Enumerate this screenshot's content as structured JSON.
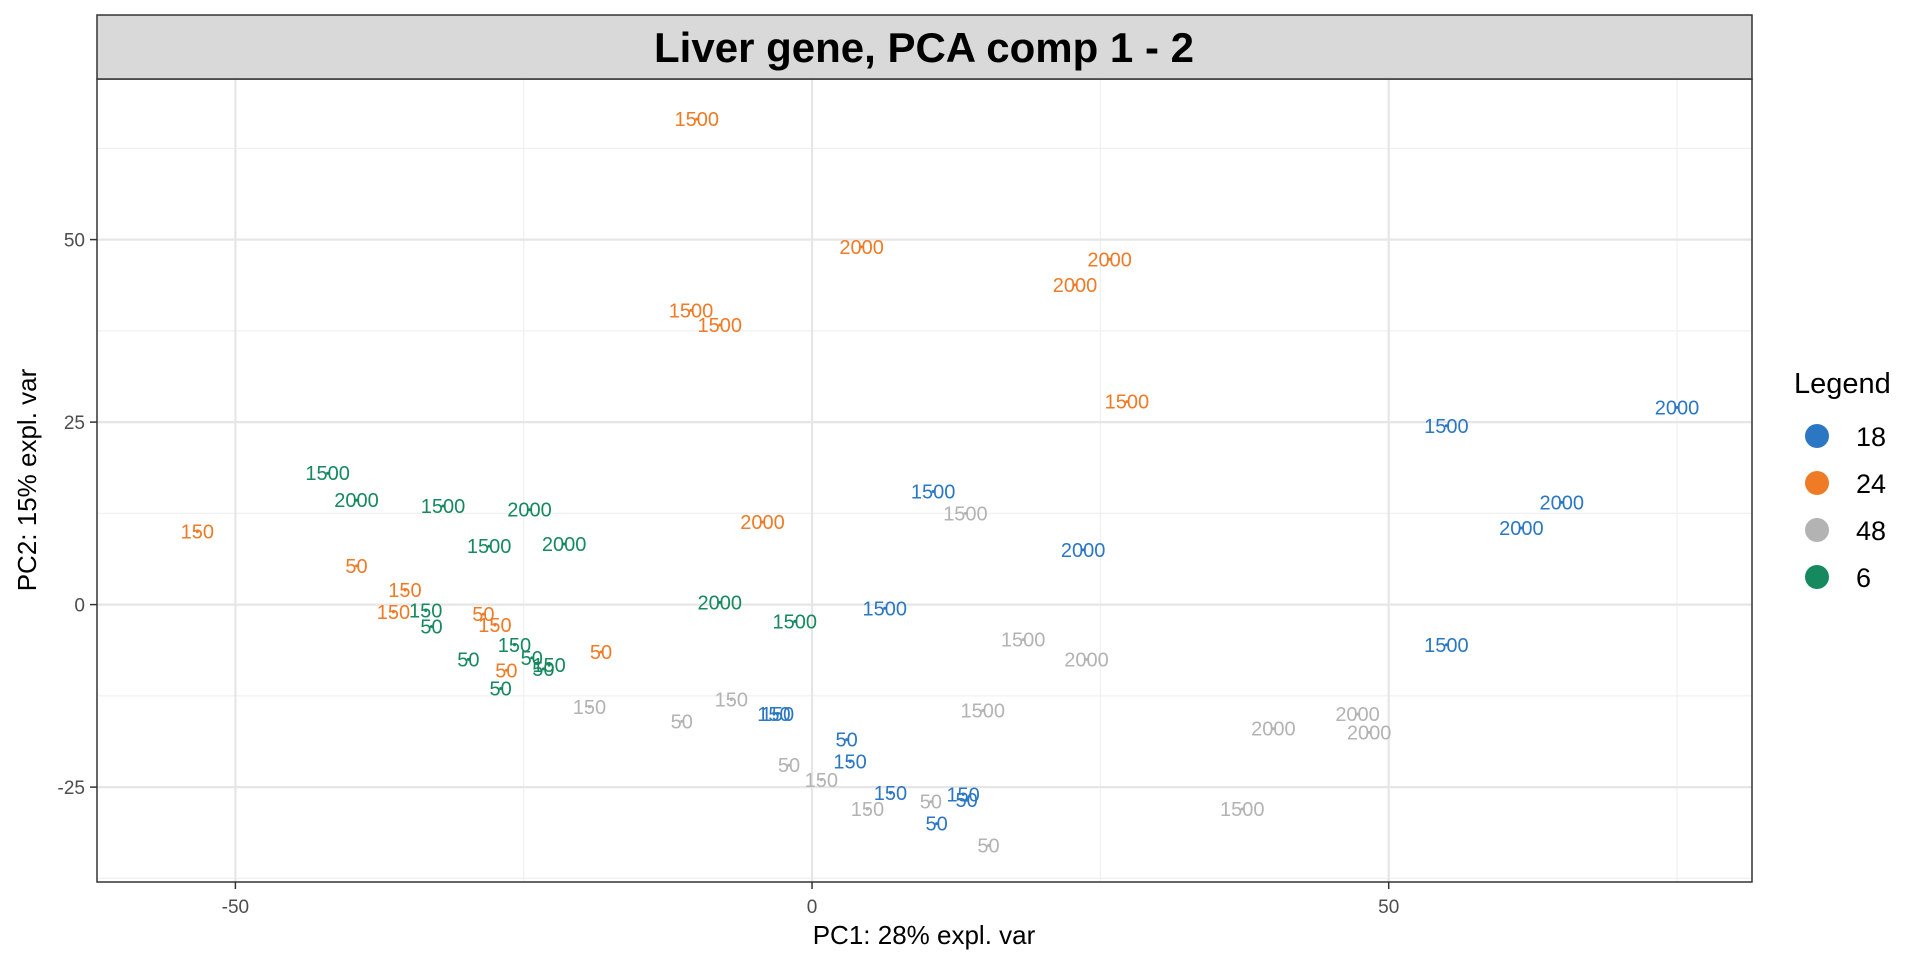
{
  "chart_data": {
    "type": "scatter",
    "title": "Liver gene, PCA comp 1 - 2",
    "xlabel": "PC1: 28% expl. var",
    "ylabel": "PC2: 15% expl. var",
    "xlim": [
      -62,
      81.5
    ],
    "ylim": [
      -38,
      72
    ],
    "xticks": [
      -50,
      0,
      50
    ],
    "yticks": [
      -25,
      0,
      25,
      50
    ],
    "grid": true,
    "legend": {
      "title": "Legend",
      "position": "right"
    },
    "series": [
      {
        "name": "18",
        "color": "#2b77c3",
        "points": [
          {
            "x": 75,
            "y": 27,
            "label": "2000"
          },
          {
            "x": 55,
            "y": 24.5,
            "label": "1500"
          },
          {
            "x": 65,
            "y": 14,
            "label": "2000"
          },
          {
            "x": 61.5,
            "y": 10.5,
            "label": "2000"
          },
          {
            "x": 55,
            "y": -5.5,
            "label": "1500"
          },
          {
            "x": 10.5,
            "y": 15.5,
            "label": "1500"
          },
          {
            "x": 23.5,
            "y": 7.5,
            "label": "2000"
          },
          {
            "x": 6.3,
            "y": -0.5,
            "label": "1500"
          },
          {
            "x": -3.3,
            "y": -15,
            "label": "150"
          },
          {
            "x": -3,
            "y": -15,
            "label": "150"
          },
          {
            "x": 3,
            "y": -18.5,
            "label": "50"
          },
          {
            "x": 3.3,
            "y": -21.5,
            "label": "150"
          },
          {
            "x": 6.8,
            "y": -25.8,
            "label": "150"
          },
          {
            "x": 13.1,
            "y": -26,
            "label": "150"
          },
          {
            "x": 13.4,
            "y": -26.8,
            "label": "50"
          },
          {
            "x": 10.8,
            "y": -30,
            "label": "50"
          }
        ]
      },
      {
        "name": "24",
        "color": "#ef7b27",
        "points": [
          {
            "x": -10,
            "y": 66.5,
            "label": "1500"
          },
          {
            "x": 4.3,
            "y": 49,
            "label": "2000"
          },
          {
            "x": 25.8,
            "y": 47.3,
            "label": "2000"
          },
          {
            "x": 22.8,
            "y": 43.8,
            "label": "2000"
          },
          {
            "x": -10.5,
            "y": 40.3,
            "label": "1500"
          },
          {
            "x": -8,
            "y": 38.3,
            "label": "1500"
          },
          {
            "x": 27.3,
            "y": 27.8,
            "label": "1500"
          },
          {
            "x": -4.3,
            "y": 11.3,
            "label": "2000"
          },
          {
            "x": -53.3,
            "y": 10,
            "label": "150"
          },
          {
            "x": -39.5,
            "y": 5.3,
            "label": "50"
          },
          {
            "x": -35.3,
            "y": 2,
            "label": "150"
          },
          {
            "x": -36.3,
            "y": -1,
            "label": "150"
          },
          {
            "x": -28.5,
            "y": -1.3,
            "label": "50"
          },
          {
            "x": -27.5,
            "y": -2.8,
            "label": "150"
          },
          {
            "x": -18.3,
            "y": -6.5,
            "label": "50"
          },
          {
            "x": -26.5,
            "y": -9,
            "label": "50"
          }
        ]
      },
      {
        "name": "48",
        "color": "#b3b3b3",
        "points": [
          {
            "x": 13.3,
            "y": 12.5,
            "label": "1500"
          },
          {
            "x": 18.3,
            "y": -4.8,
            "label": "1500"
          },
          {
            "x": 23.8,
            "y": -7.5,
            "label": "2000"
          },
          {
            "x": 14.8,
            "y": -14.5,
            "label": "1500"
          },
          {
            "x": 47.3,
            "y": -15,
            "label": "2000"
          },
          {
            "x": 40,
            "y": -17,
            "label": "2000"
          },
          {
            "x": 48.3,
            "y": -17.5,
            "label": "2000"
          },
          {
            "x": 37.3,
            "y": -28,
            "label": "1500"
          },
          {
            "x": -7,
            "y": -13,
            "label": "150"
          },
          {
            "x": -19.3,
            "y": -14,
            "label": "150"
          },
          {
            "x": -11.3,
            "y": -16,
            "label": "50"
          },
          {
            "x": -2,
            "y": -22,
            "label": "50"
          },
          {
            "x": 0.8,
            "y": -24,
            "label": "150"
          },
          {
            "x": 4.8,
            "y": -28,
            "label": "150"
          },
          {
            "x": 10.3,
            "y": -27,
            "label": "50"
          },
          {
            "x": 15.3,
            "y": -33,
            "label": "50"
          }
        ]
      },
      {
        "name": "6",
        "color": "#16895e",
        "points": [
          {
            "x": -42,
            "y": 18,
            "label": "1500"
          },
          {
            "x": -39.5,
            "y": 14.3,
            "label": "2000"
          },
          {
            "x": -32,
            "y": 13.5,
            "label": "1500"
          },
          {
            "x": -24.5,
            "y": 13,
            "label": "2000"
          },
          {
            "x": -28,
            "y": 8,
            "label": "1500"
          },
          {
            "x": -21.5,
            "y": 8.3,
            "label": "2000"
          },
          {
            "x": -8,
            "y": 0.3,
            "label": "2000"
          },
          {
            "x": -1.5,
            "y": -2.3,
            "label": "1500"
          },
          {
            "x": -33.5,
            "y": -0.8,
            "label": "150"
          },
          {
            "x": -33,
            "y": -3,
            "label": "50"
          },
          {
            "x": -25.8,
            "y": -5.5,
            "label": "150"
          },
          {
            "x": -29.8,
            "y": -7.5,
            "label": "50"
          },
          {
            "x": -24.3,
            "y": -7.3,
            "label": "50"
          },
          {
            "x": -22.8,
            "y": -8.3,
            "label": "150"
          },
          {
            "x": -23.3,
            "y": -8.8,
            "label": "50"
          },
          {
            "x": -27,
            "y": -11.5,
            "label": "50"
          }
        ]
      }
    ]
  }
}
